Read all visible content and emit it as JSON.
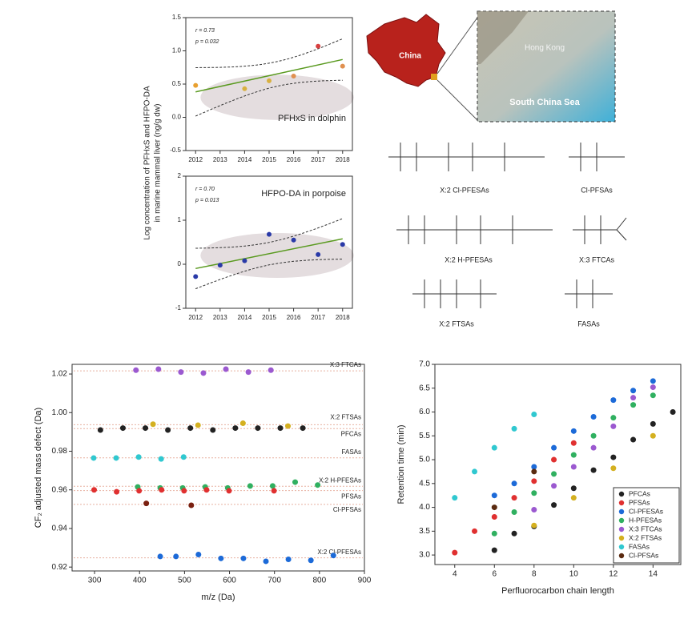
{
  "chart_data": [
    {
      "type": "scatter",
      "ylabel": [
        "Log concentration of PFHxS and HFPO-DA",
        "in marine mammal liver (ng/g dw)"
      ],
      "annotations": [
        "r = 0.73",
        "p = 0.032",
        "PFHxS in dolphin"
      ],
      "x": [
        2012,
        2014,
        2015,
        2016,
        2017,
        2018
      ],
      "values": [
        0.48,
        0.43,
        0.55,
        0.62,
        1.07,
        0.77
      ],
      "colors": [
        "#e8a030",
        "#d8b040",
        "#d8b040",
        "#e09050",
        "#d84040",
        "#e09050"
      ],
      "xlim": [
        2011.6,
        2018.4
      ],
      "xticks": [
        2012,
        2013,
        2014,
        2015,
        2016,
        2017,
        2018
      ],
      "ylim": [
        -0.5,
        1.5
      ],
      "yticks": [
        -0.5,
        {
          "value": 0,
          "label": "0.0"
        },
        0.5,
        {
          "value": 1,
          "label": "1.0"
        },
        1.5
      ],
      "fit": true
    },
    {
      "type": "scatter",
      "annotations": [
        "r = 0.70",
        "p = 0.013",
        "HFPO-DA in porpoise"
      ],
      "x": [
        2012,
        2013,
        2014,
        2015,
        2016,
        2017,
        2018
      ],
      "values": [
        -0.28,
        -0.02,
        0.08,
        0.68,
        0.55,
        0.22,
        0.45
      ],
      "colors": [
        "#2a3aa8",
        "#2a3aa8",
        "#2a3aa8",
        "#2a3aa8",
        "#2a3aa8",
        "#2a3aa8",
        "#2a3aa8"
      ],
      "xlim": [
        2011.6,
        2018.4
      ],
      "xticks": [
        2012,
        2013,
        2014,
        2015,
        2016,
        2017,
        2018
      ],
      "ylim": [
        -1,
        2
      ],
      "yticks": [
        -1,
        0,
        1,
        2
      ],
      "fit": true
    },
    {
      "type": "scatter",
      "xlabel": "m/z (Da)",
      "ylabel": "CF₂ adjusted mass defect (Da)",
      "xlim": [
        250,
        900
      ],
      "xticks": [
        300,
        400,
        500,
        600,
        700,
        800,
        900
      ],
      "ylim": [
        0.918,
        1.025
      ],
      "yticks": [
        0.92,
        0.94,
        0.96,
        0.98,
        {
          "value": 1,
          "label": "1.00"
        },
        1.02
      ],
      "ref_lines": true,
      "series": [
        {
          "name": "X:3 FTCAs",
          "color": "#9b59d0",
          "x": [
            392,
            442,
            492,
            542,
            592,
            642,
            692
          ],
          "values": [
            1.022,
            1.0225,
            1.021,
            1.0205,
            1.0225,
            1.021,
            1.022
          ]
        },
        {
          "name": "X:2 FTSAs",
          "color": "#d4b020",
          "x": [
            430,
            530,
            630,
            730
          ],
          "values": [
            0.994,
            0.9935,
            0.9945,
            0.993
          ]
        },
        {
          "name": "PFCAs",
          "color": "#222222",
          "x": [
            313,
            363,
            413,
            463,
            513,
            563,
            613,
            663,
            713,
            763
          ],
          "values": [
            0.991,
            0.992,
            0.992,
            0.991,
            0.992,
            0.991,
            0.992,
            0.992,
            0.992,
            0.992
          ]
        },
        {
          "name": "FASAs",
          "color": "#30c8d0",
          "x": [
            298,
            348,
            398,
            448,
            498
          ],
          "values": [
            0.9765,
            0.9765,
            0.977,
            0.976,
            0.977
          ]
        },
        {
          "name": "X:2 H-PFESAs",
          "color": "#30b060",
          "x": [
            396,
            446,
            496,
            546,
            596,
            646,
            696,
            746,
            796
          ],
          "values": [
            0.9615,
            0.961,
            0.961,
            0.9615,
            0.961,
            0.962,
            0.962,
            0.964,
            0.9625
          ]
        },
        {
          "name": "PFSAs",
          "color": "#e03030",
          "x": [
            299,
            349,
            399,
            449,
            499,
            549,
            599,
            699
          ],
          "values": [
            0.96,
            0.959,
            0.9595,
            0.96,
            0.9595,
            0.96,
            0.9595,
            0.9595
          ]
        },
        {
          "name": "Cl-PFSAs",
          "color": "#7a2010",
          "x": [
            415,
            515
          ],
          "values": [
            0.953,
            0.952
          ]
        },
        {
          "name": "X:2 Cl-PFESAs",
          "color": "#1c6ad8",
          "x": [
            446,
            481,
            531,
            581,
            631,
            681,
            731,
            781,
            831
          ],
          "values": [
            0.9255,
            0.9255,
            0.9265,
            0.9245,
            0.9245,
            0.923,
            0.924,
            0.9235,
            0.926
          ]
        }
      ]
    },
    {
      "type": "scatter",
      "xlabel": "Perfluorocarbon chain length",
      "ylabel": "Retention time (min)",
      "xlim": [
        3,
        15.4
      ],
      "xticks": [
        4,
        6,
        8,
        10,
        12,
        14
      ],
      "ylim": [
        2.8,
        7.0
      ],
      "yticks": [
        {
          "value": 3,
          "label": "3.0"
        },
        3.5,
        {
          "value": 4,
          "label": "4.0"
        },
        4.5,
        {
          "value": 5,
          "label": "5.0"
        },
        5.5,
        {
          "value": 6,
          "label": "6.0"
        },
        6.5,
        {
          "value": 7,
          "label": "7.0"
        }
      ],
      "legend": "lower right",
      "series": [
        {
          "name": "PFCAs",
          "color": "#222222",
          "x": [
            6,
            7,
            8,
            9,
            10,
            11,
            12,
            13,
            14,
            15
          ],
          "values": [
            3.1,
            3.45,
            3.6,
            4.05,
            4.4,
            4.78,
            5.05,
            5.42,
            5.75,
            6.0
          ]
        },
        {
          "name": "PFSAs",
          "color": "#e03030",
          "x": [
            4,
            5,
            6,
            7,
            8,
            9,
            10
          ],
          "values": [
            3.05,
            3.5,
            3.8,
            4.2,
            4.55,
            5.0,
            5.35
          ]
        },
        {
          "name": "Cl-PFESAs",
          "color": "#1c6ad8",
          "x": [
            6,
            7,
            8,
            9,
            10,
            11,
            12,
            13,
            14
          ],
          "values": [
            4.25,
            4.5,
            4.85,
            5.25,
            5.6,
            5.9,
            6.25,
            6.45,
            6.65
          ]
        },
        {
          "name": "H-PFESAs",
          "color": "#30b060",
          "x": [
            6,
            7,
            8,
            9,
            10,
            11,
            12,
            13,
            14
          ],
          "values": [
            3.45,
            3.9,
            4.3,
            4.7,
            5.1,
            5.5,
            5.88,
            6.15,
            6.35
          ]
        },
        {
          "name": "X:3 FTCAs",
          "color": "#9b59d0",
          "x": [
            8,
            9,
            10,
            11,
            12,
            13,
            14
          ],
          "values": [
            3.95,
            4.45,
            4.85,
            5.25,
            5.7,
            6.3,
            6.52
          ]
        },
        {
          "name": "X:2 FTSAs",
          "color": "#d4b020",
          "x": [
            8,
            10,
            12,
            14
          ],
          "values": [
            3.62,
            4.2,
            4.82,
            5.5
          ]
        },
        {
          "name": "FASAs",
          "color": "#30c8d0",
          "x": [
            4,
            5,
            6,
            7,
            8
          ],
          "values": [
            4.2,
            4.75,
            5.25,
            5.65,
            5.95
          ]
        },
        {
          "name": "Cl-PFSAs",
          "color": "#5a2a10",
          "x": [
            6,
            8
          ],
          "values": [
            4.0,
            4.75
          ]
        }
      ]
    }
  ],
  "map": {
    "labels": [
      "China",
      "Hong Kong",
      "South China Sea"
    ]
  },
  "structures": {
    "labels": [
      "X:2 Cl-PFESAs",
      "Cl-PFSAs",
      "X:2 H-PFESAs",
      "X:3 FTCAs",
      "X:2 FTSAs",
      "FASAs"
    ]
  }
}
